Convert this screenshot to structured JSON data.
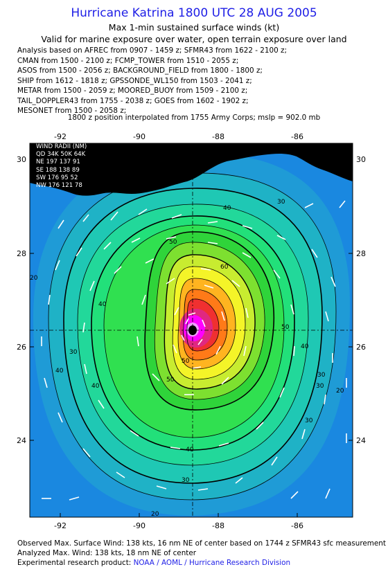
{
  "header": {
    "title": "Hurricane Katrina 1800 UTC 28 AUG 2005",
    "subtitle1": "Max 1-min sustained surface winds (kt)",
    "subtitle2": "Valid for marine exposure over water, open terrain exposure over land"
  },
  "analysis_lines": [
    "Analysis based on  AFREC from 0907 - 1459 z;  SFMR43 from 1622 - 2100 z;",
    "CMAN from 1500 - 2100 z;  FCMP_TOWER from 1510 - 2055 z;",
    "ASOS from 1500 - 2056 z;  BACKGROUND_FIELD from 1800 - 1800 z;",
    "SHIP from 1612 - 1818 z;  GPSSONDE_WL150 from 1503 - 2041 z;",
    "METAR from 1500 - 2059 z;  MOORED_BUOY from 1509 - 2100 z;",
    "TAIL_DOPPLER43 from 1755 - 2038 z;  GOES from 1602 - 1902 z;",
    "MESONET from 1500 - 2058 z;"
  ],
  "position_note": "1800 z position interpolated from 1755 Army Corps; mslp = 902.0 mb",
  "map": {
    "lon_ticks": [
      "-92",
      "-90",
      "-88",
      "-86"
    ],
    "lat_ticks": [
      "30",
      "28",
      "26",
      "24"
    ],
    "contour_labels": [
      "20",
      "30",
      "40",
      "50",
      "60",
      "20",
      "30",
      "40",
      "50",
      "40",
      "30",
      "20",
      "30",
      "40",
      "50",
      "40",
      "30",
      "20",
      "30",
      "40",
      "50"
    ],
    "center": {
      "lon": -88.6,
      "lat": 26.3
    },
    "colors": {
      "ocean": "#1e90e8",
      "land": "#000000",
      "core": "#ff00ff",
      "eye": "#000000"
    },
    "wind_radii": {
      "header": "WIND RADII (NM)",
      "columns": "QD 34K  50K  64K",
      "rows": [
        "NE 197 137  91",
        "SE 188 138  89",
        "SW 176  95  52",
        "NW 176 121  78"
      ]
    }
  },
  "footer": {
    "line1": "Observed Max. Surface Wind: 138 kts, 16 nm NE of center based on 1744 z SFMR43 sfc measurement",
    "line2": "Analyzed Max. Wind: 138 kts, 18 nm NE of center",
    "line3_prefix": "Experimental research product:",
    "line3_link": "NOAA / AOML / Hurricane Research Division"
  }
}
